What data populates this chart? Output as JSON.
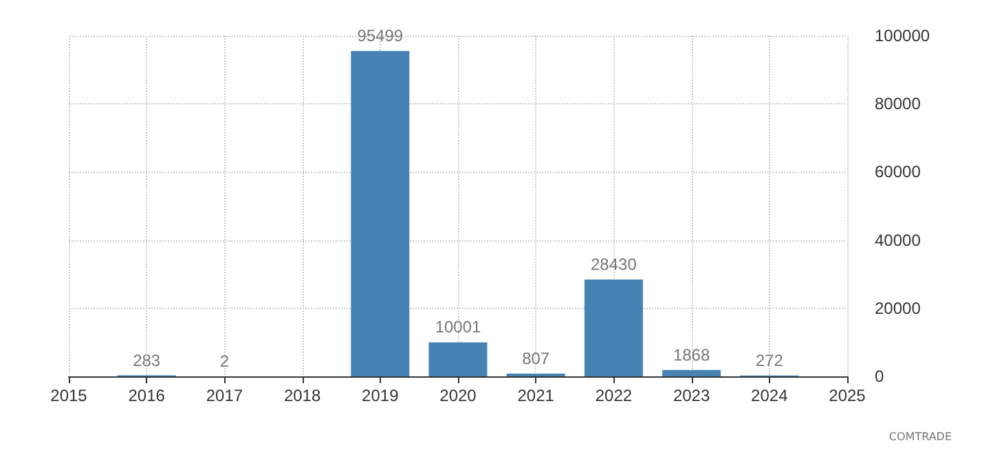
{
  "chart_data": {
    "type": "bar",
    "x": [
      2016,
      2017,
      2018,
      2019,
      2020,
      2021,
      2022,
      2023,
      2024
    ],
    "values": [
      283,
      2,
      null,
      95499,
      10001,
      807,
      28430,
      1868,
      272
    ],
    "color": "#4682b4",
    "xlim": [
      2015,
      2025
    ],
    "xticks": [
      2015,
      2016,
      2017,
      2018,
      2019,
      2020,
      2021,
      2022,
      2023,
      2024,
      2025
    ],
    "ylim": [
      0,
      100000
    ],
    "yticks": [
      0,
      20000,
      40000,
      60000,
      80000,
      100000
    ],
    "grid": true,
    "data_labels": true,
    "annotations": [
      "COMTRADE"
    ]
  }
}
